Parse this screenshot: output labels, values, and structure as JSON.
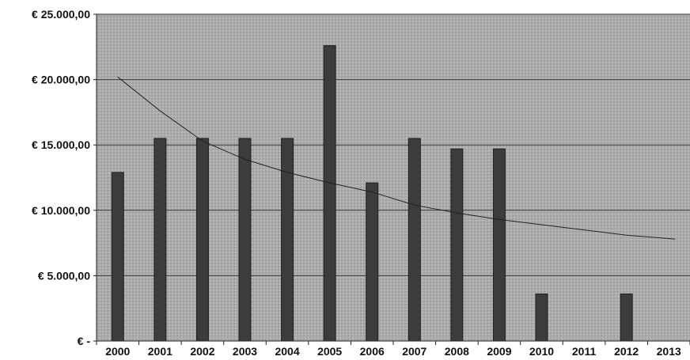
{
  "chart_data": {
    "type": "bar",
    "categories": [
      "2000",
      "2001",
      "2002",
      "2003",
      "2004",
      "2005",
      "2006",
      "2007",
      "2008",
      "2009",
      "2010",
      "2011",
      "2012",
      "2013"
    ],
    "values": [
      12900,
      15500,
      15500,
      15500,
      15500,
      22600,
      12100,
      15500,
      14700,
      14700,
      3600,
      0,
      3600,
      0
    ],
    "trendline": {
      "type": "logarithmic",
      "values": [
        20200,
        17600,
        15300,
        13900,
        12900,
        12100,
        11400,
        10400,
        9800,
        9300,
        8900,
        8500,
        8100,
        7800
      ]
    },
    "y_tick_labels": [
      "€ -",
      "€ 5.000,00",
      "€ 10.000,00",
      "€ 15.000,00",
      "€ 20.000,00",
      "€ 25.000,00"
    ],
    "y_tick_values": [
      0,
      5000,
      10000,
      15000,
      20000,
      25000
    ],
    "ylim": [
      0,
      25000
    ],
    "grid": true,
    "legend": "none",
    "colors": {
      "plot_background": "#a9a9a9",
      "bar": "#3c3c3c",
      "gridline": "#3a3a3a",
      "trendline": "#222222"
    }
  }
}
